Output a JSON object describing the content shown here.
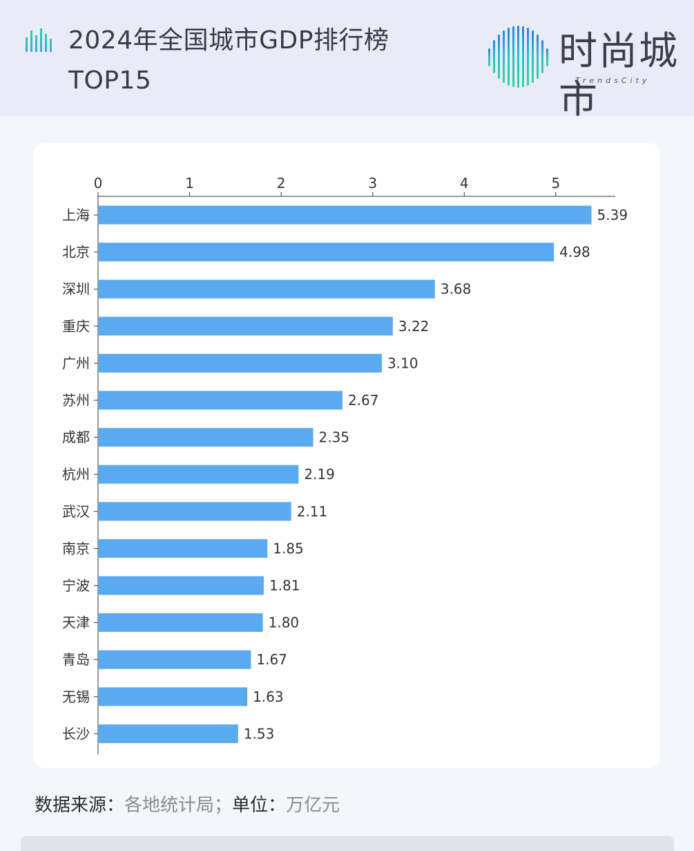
{
  "header": {
    "title_line1": "2024年全国城市GDP排行榜",
    "title_line2": "TOP15",
    "logo_text": "时尚城市",
    "logo_sub": "TrendsCity"
  },
  "footer": {
    "label1": "数据来源：",
    "source": "各地统计局",
    "sep": "；",
    "label2": "单位：",
    "unit": "万亿元"
  },
  "colors": {
    "bar": "#5aaaf2",
    "axis": "#333333",
    "text": "#333333"
  },
  "chart_data": {
    "type": "bar",
    "orientation": "horizontal",
    "categories": [
      "上海",
      "北京",
      "深圳",
      "重庆",
      "广州",
      "苏州",
      "成都",
      "杭州",
      "武汉",
      "南京",
      "宁波",
      "天津",
      "青岛",
      "无锡",
      "长沙"
    ],
    "values": [
      5.39,
      4.98,
      3.68,
      3.22,
      3.1,
      2.67,
      2.35,
      2.19,
      2.11,
      1.85,
      1.81,
      1.8,
      1.67,
      1.63,
      1.53
    ],
    "value_labels": [
      "5.39",
      "4.98",
      "3.68",
      "3.22",
      "3.10",
      "2.67",
      "2.35",
      "2.19",
      "2.11",
      "1.85",
      "1.81",
      "1.80",
      "1.67",
      "1.63",
      "1.53"
    ],
    "x_ticks": [
      "0",
      "1",
      "2",
      "3",
      "4",
      "5"
    ],
    "xlim": [
      0,
      5.65
    ],
    "x_axis_position": "top",
    "grid": false,
    "legend": "none"
  }
}
